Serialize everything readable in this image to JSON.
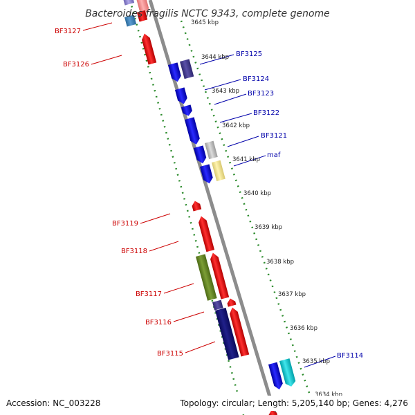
{
  "title": "Bacteroides fragilis NCTC 9343, complete genome",
  "footer": {
    "accession": "Accession: NC_003228",
    "topology": "Topology: circular; Length: 5,205,140 bp; Genes: 4,276"
  },
  "colors": {
    "backbone": "#8c8c8c",
    "tick": "#2a8a2a",
    "label_left": "#cc0000",
    "label_right": "#0000aa"
  },
  "kbp_labels": [
    "3645 kbp",
    "3644 kbp",
    "3643 kbp",
    "3642 kbp",
    "3641 kbp",
    "3640 kbp",
    "3639 kbp",
    "3638 kbp",
    "3637 kbp",
    "3636 kbp",
    "3635 kbp",
    "3634 kbp"
  ],
  "left_labels": [
    "BF3127",
    "BF3126",
    "BF3119",
    "BF3118",
    "BF3117",
    "BF3116",
    "BF3115"
  ],
  "right_labels": [
    "BF3125",
    "BF3124",
    "BF3123",
    "BF3122",
    "BF3121",
    "maf",
    "BF3114"
  ]
}
